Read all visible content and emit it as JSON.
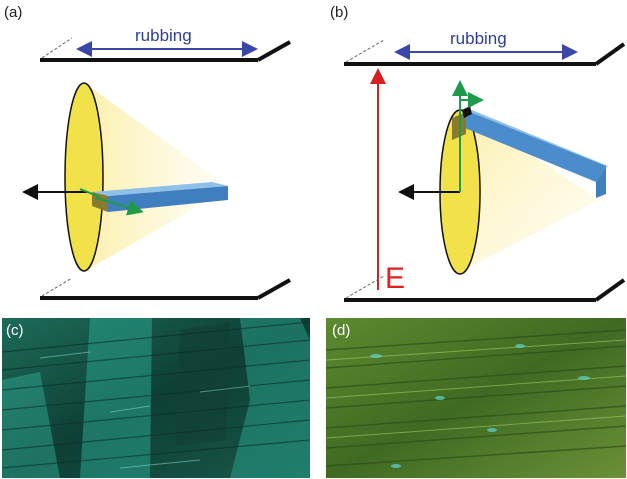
{
  "panels": {
    "a": {
      "label": "(a)",
      "rubbing": "rubbing"
    },
    "b": {
      "label": "(b)",
      "rubbing": "rubbing",
      "field": "E"
    },
    "c": {
      "label": "(c)"
    },
    "d": {
      "label": "(d)"
    }
  },
  "colors": {
    "plate": "#111111",
    "rubbing_arrow": "#3a46a8",
    "field_arrow": "#d42020",
    "cone_fill": "#fdf3bf",
    "ellipse_fill": "#f2e24a",
    "rod_top": "#6fa7d8",
    "rod_side": "#3f7fbf",
    "director_arrow": "#1f9a4a",
    "polarization_arrow": "#111111",
    "micrograph_c": "#0f4a3d",
    "micrograph_d": "#4e7a2a"
  }
}
